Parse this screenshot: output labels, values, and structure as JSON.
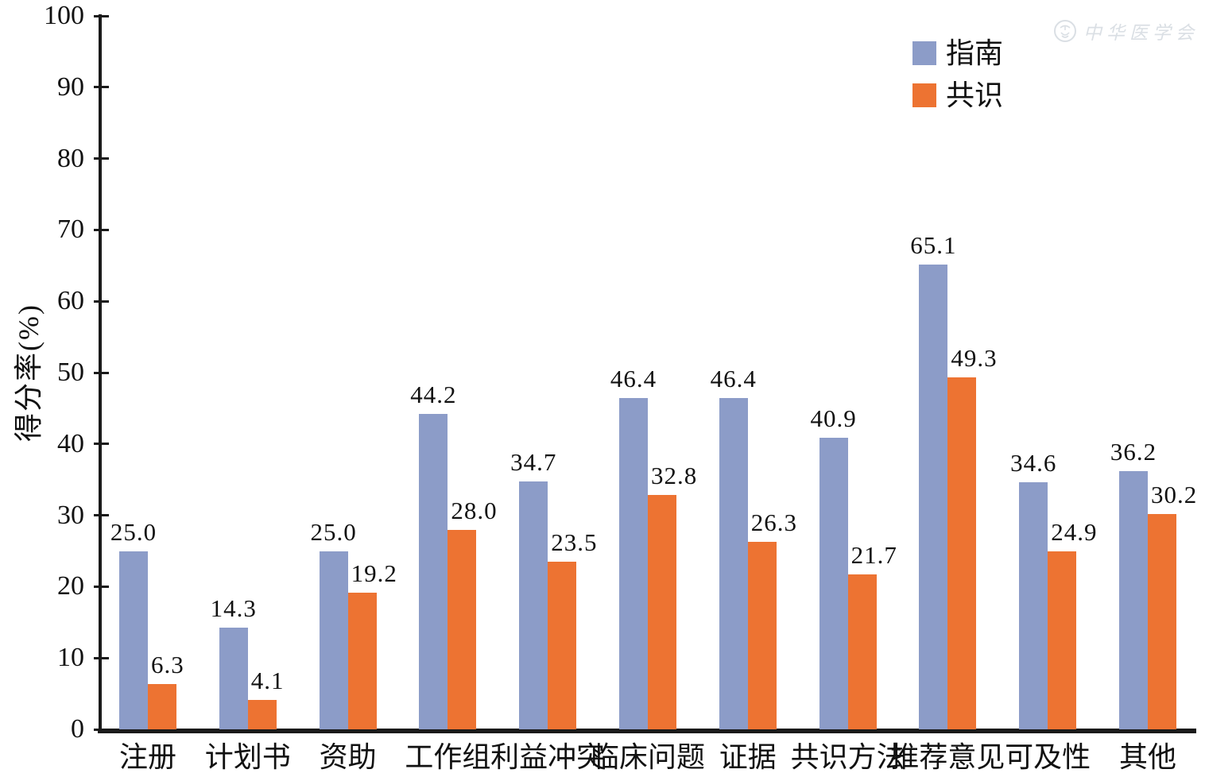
{
  "watermark": {
    "logo_icon": "cma-emblem-icon",
    "text": "中华医学会"
  },
  "chart_data": {
    "type": "bar",
    "title": "",
    "xlabel": "",
    "ylabel": "得分率(%)",
    "ylim": [
      0,
      100
    ],
    "ytick_step": 10,
    "grid": false,
    "legend_position": "top-right",
    "value_labels": true,
    "value_label_decimals": 1,
    "categories": [
      "注册",
      "计划书",
      "资助",
      "工作组",
      "利益冲突",
      "临床问题",
      "证据",
      "共识方法",
      "推荐意见",
      "可及性",
      "其他"
    ],
    "series": [
      {
        "name": "指南",
        "color": "#8C9CC8",
        "values": [
          25.0,
          14.3,
          25.0,
          44.2,
          34.7,
          46.4,
          46.4,
          40.9,
          65.1,
          34.6,
          36.2
        ]
      },
      {
        "name": "共识",
        "color": "#ED7332",
        "values": [
          6.3,
          4.1,
          19.2,
          28.0,
          23.5,
          32.8,
          26.3,
          21.7,
          49.3,
          24.9,
          30.2
        ]
      }
    ]
  }
}
